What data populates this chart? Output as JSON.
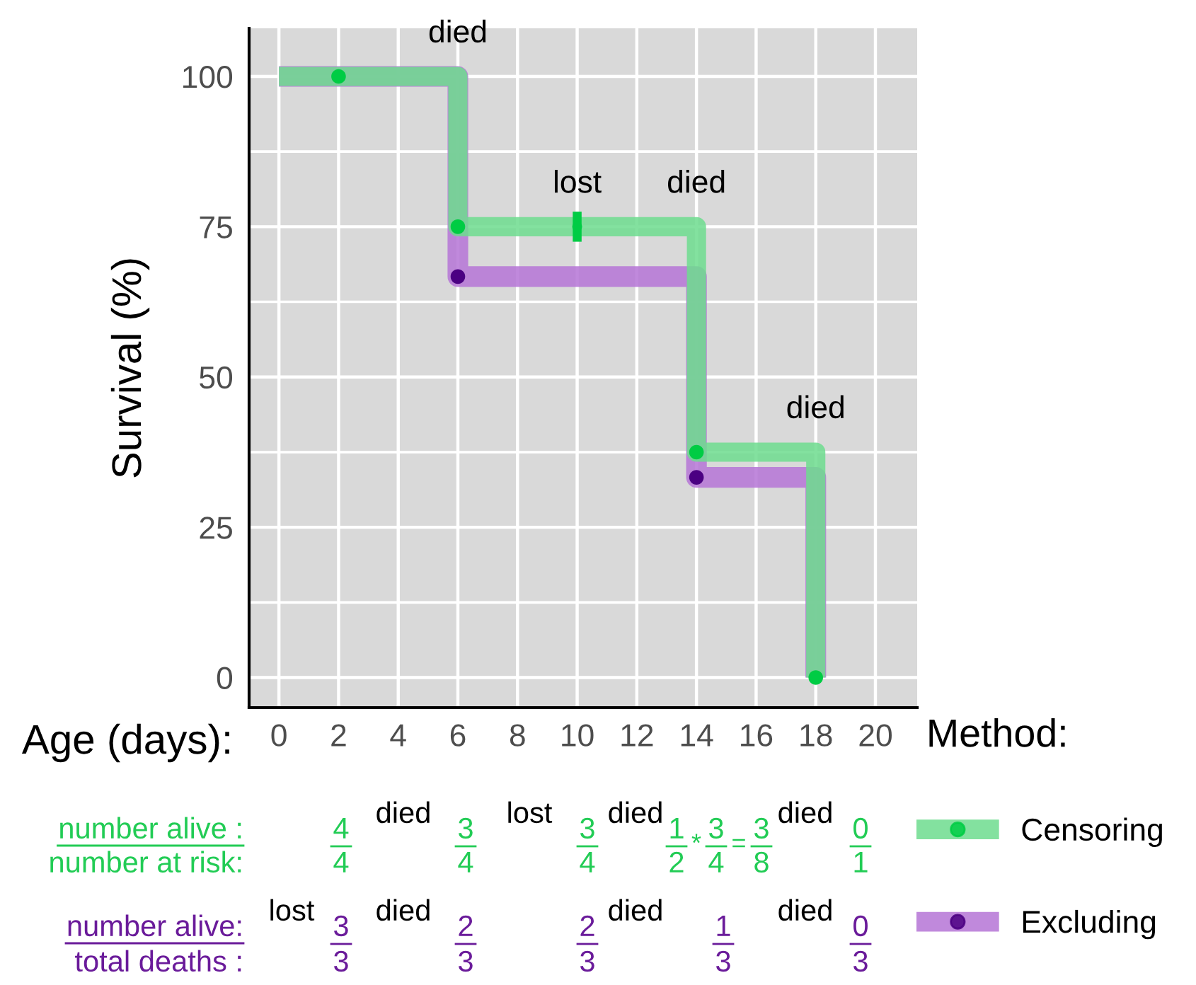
{
  "chart_data": {
    "type": "step",
    "ylabel": "Survival (%)",
    "xlabel": "Age (days):",
    "legend_title": "Method:",
    "xlim": [
      -1,
      21.4
    ],
    "ylim": [
      -5,
      108
    ],
    "xticks": [
      0,
      2,
      4,
      6,
      8,
      10,
      12,
      14,
      16,
      18,
      20
    ],
    "yticks": [
      0,
      25,
      50,
      75,
      100
    ],
    "grid": true,
    "legend": "bottom right",
    "series": [
      {
        "name": "Excluding",
        "color": "#b574d6",
        "x": [
          0,
          6,
          14,
          18
        ],
        "values": [
          100,
          66.7,
          33.3,
          0
        ]
      },
      {
        "name": "Censoring",
        "color": "#6ddc8e",
        "x": [
          0,
          6,
          14,
          18
        ],
        "values": [
          100,
          75,
          37.5,
          0
        ]
      },
      {
        "type": "scatter",
        "marker": "circle",
        "color": "#4b0082",
        "x": [
          6,
          14
        ],
        "values": [
          66.7,
          33.3
        ]
      },
      {
        "type": "scatter",
        "marker": "circle",
        "color": "#00cc44",
        "x": [
          2,
          6,
          14,
          18
        ],
        "values": [
          100,
          75,
          37.5,
          0
        ]
      },
      {
        "type": "scatter",
        "marker": "circle",
        "color": "#00cc44",
        "x": [
          10
        ],
        "values": [
          75
        ],
        "errors": [
          2.5
        ]
      }
    ],
    "annotations": [
      {
        "text": "died",
        "x": 6,
        "y": 100
      },
      {
        "text": "lost",
        "x": 10,
        "y": 75
      },
      {
        "text": "died",
        "x": 14,
        "y": 75
      },
      {
        "text": "died",
        "x": 18,
        "y": 37.5
      },
      "number alive :",
      "number at risk:",
      "4",
      "4",
      "died",
      "3",
      "4",
      "lost",
      "3",
      "4",
      "died",
      "1",
      "2",
      "*",
      "3",
      "4",
      "=",
      "3",
      "8",
      "died",
      "0",
      "1",
      "number alive:",
      "total deaths :",
      "lost",
      "3",
      "3",
      "died",
      "2",
      "3",
      "2",
      "3",
      "died",
      "1",
      "3",
      "died",
      "0",
      "3"
    ]
  }
}
